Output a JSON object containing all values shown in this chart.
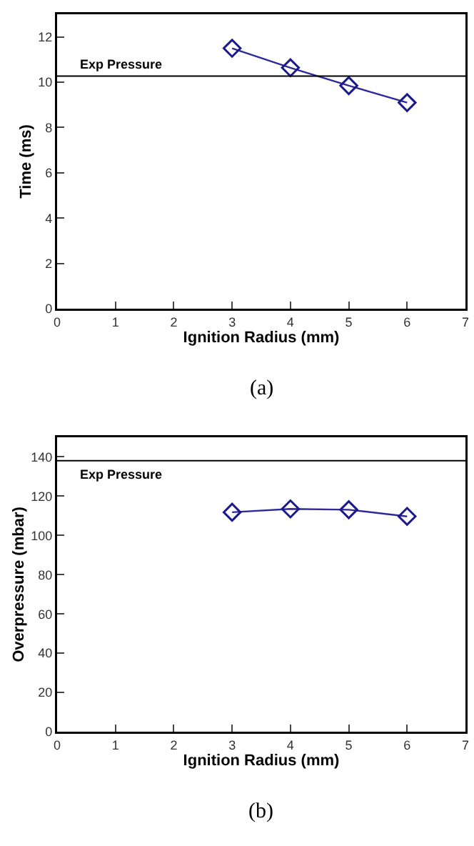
{
  "chart_data": [
    {
      "type": "line",
      "xlabel": "Ignition Radius (mm)",
      "ylabel": "Time (ms)",
      "x": [
        3,
        4,
        5,
        6
      ],
      "series": [
        {
          "color": "#2e2a9a",
          "values": [
            11.5,
            10.64,
            9.85,
            9.1
          ]
        }
      ],
      "xlim": [
        0,
        7
      ],
      "xticks": [
        0,
        1,
        2,
        3,
        4,
        5,
        6,
        7
      ],
      "ylim": [
        0,
        13
      ],
      "yticks": [
        0,
        2,
        4,
        6,
        8,
        10,
        12
      ],
      "ref_lines": [
        {
          "axis": "y",
          "value": 10.27,
          "label": "Exp Pressure",
          "color": "#000000"
        }
      ],
      "marker": "diamond",
      "annotations": [
        "(a)"
      ]
    },
    {
      "type": "line",
      "xlabel": "Ignition Radius (mm)",
      "ylabel": "Overpressure (mbar)",
      "x": [
        3,
        4,
        5,
        6
      ],
      "series": [
        {
          "color": "#2e2a9a",
          "values": [
            111.8,
            113.5,
            113.1,
            109.7
          ]
        }
      ],
      "xlim": [
        0,
        7
      ],
      "xticks": [
        0,
        1,
        2,
        3,
        4,
        5,
        6,
        7
      ],
      "ylim": [
        0,
        150
      ],
      "yticks": [
        0,
        20,
        40,
        60,
        80,
        100,
        120,
        140
      ],
      "ref_lines": [
        {
          "axis": "y",
          "value": 138.1,
          "label": "Exp Pressure",
          "color": "#000000"
        }
      ],
      "marker": "diamond",
      "annotations": [
        "(b)"
      ]
    }
  ]
}
